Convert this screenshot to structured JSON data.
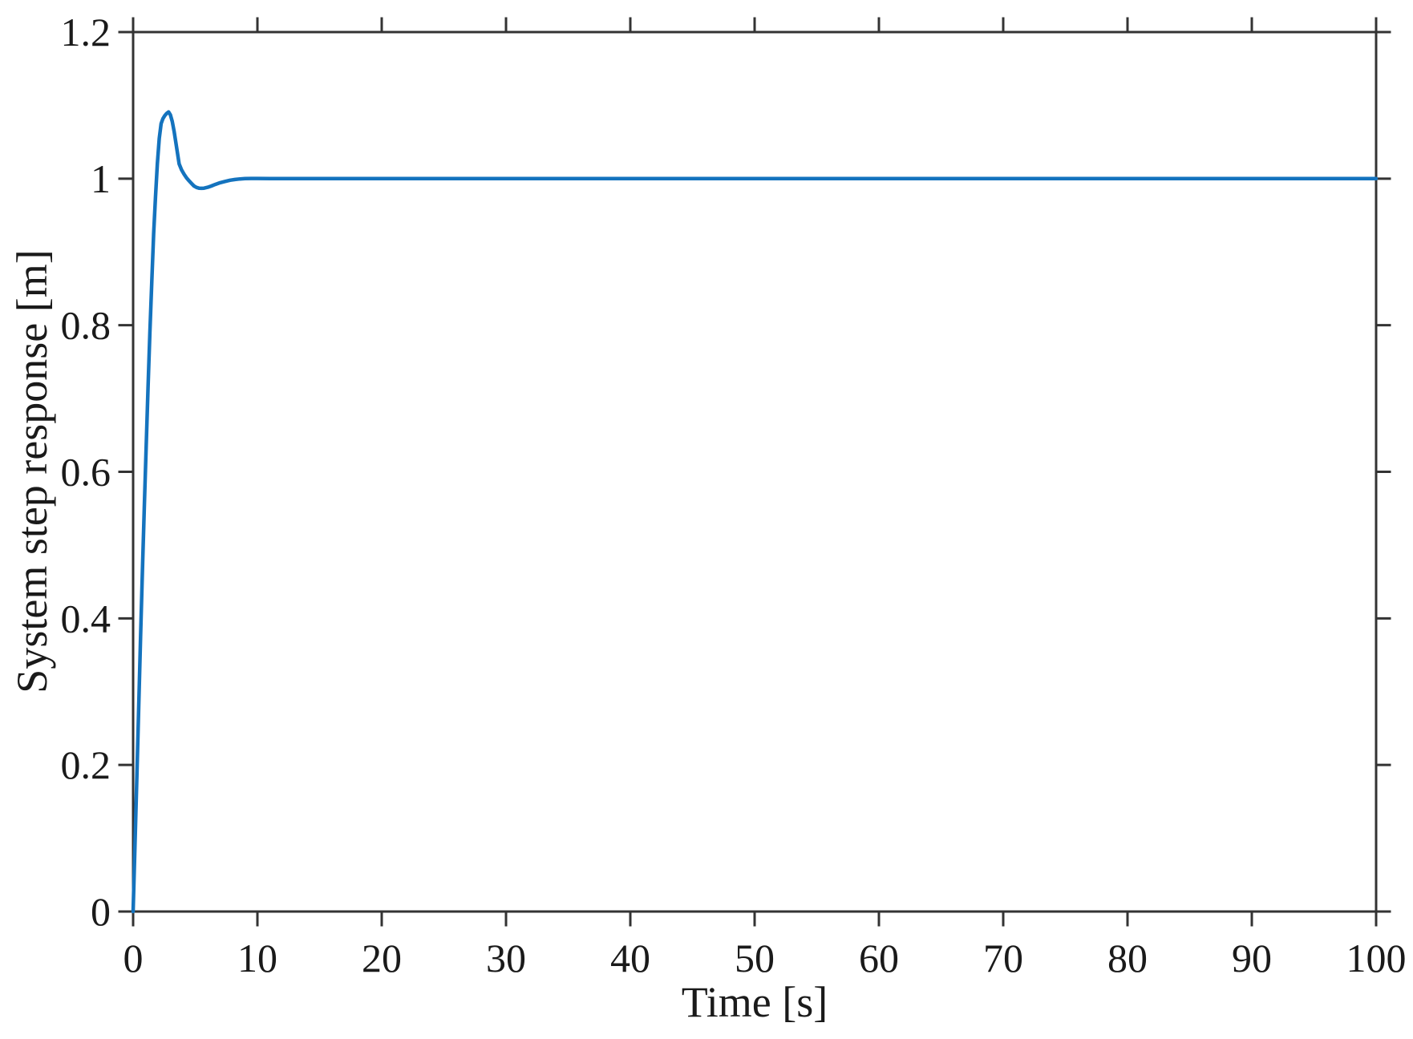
{
  "chart_data": {
    "type": "line",
    "title": "",
    "xlabel": "Time [s]",
    "ylabel": "System step response [m]",
    "xlim": [
      0,
      100
    ],
    "ylim": [
      0,
      1.2
    ],
    "xticks": [
      0,
      10,
      20,
      30,
      40,
      50,
      60,
      70,
      80,
      90,
      100
    ],
    "xtick_labels": [
      "0",
      "10",
      "20",
      "30",
      "40",
      "50",
      "60",
      "70",
      "80",
      "90",
      "100"
    ],
    "yticks": [
      0,
      0.2,
      0.4,
      0.6,
      0.8,
      1,
      1.2
    ],
    "ytick_labels": [
      "0",
      "0.2",
      "0.4",
      "0.6",
      "0.8",
      "1",
      "1.2"
    ],
    "grid": false,
    "box": true,
    "tick_direction": "out",
    "legend_position": "none",
    "axis_color": "#333333",
    "text_color": "#1a1a1a",
    "background_color": "#ffffff",
    "series": [
      {
        "name": "step response",
        "color": "#1473BE",
        "line_width": 4.5,
        "points": [
          [
            0,
            0
          ],
          [
            0.15,
            0.09
          ],
          [
            0.3,
            0.185
          ],
          [
            0.45,
            0.28
          ],
          [
            0.6,
            0.375
          ],
          [
            0.75,
            0.465
          ],
          [
            0.9,
            0.55
          ],
          [
            1.05,
            0.635
          ],
          [
            1.2,
            0.715
          ],
          [
            1.35,
            0.79
          ],
          [
            1.5,
            0.86
          ],
          [
            1.65,
            0.925
          ],
          [
            1.8,
            0.975
          ],
          [
            1.95,
            1.02
          ],
          [
            2.1,
            1.055
          ],
          [
            2.25,
            1.075
          ],
          [
            2.4,
            1.082
          ],
          [
            2.55,
            1.086
          ],
          [
            2.7,
            1.089
          ],
          [
            2.85,
            1.091
          ],
          [
            3.0,
            1.087
          ],
          [
            3.15,
            1.078
          ],
          [
            3.3,
            1.064
          ],
          [
            3.5,
            1.042
          ],
          [
            3.7,
            1.02
          ],
          [
            3.9,
            1.012
          ],
          [
            4.1,
            1.006
          ],
          [
            4.3,
            1.001
          ],
          [
            4.5,
            0.997
          ],
          [
            4.7,
            0.9935
          ],
          [
            4.9,
            0.99
          ],
          [
            5.1,
            0.988
          ],
          [
            5.3,
            0.987
          ],
          [
            5.5,
            0.9868
          ],
          [
            5.7,
            0.987
          ],
          [
            6.0,
            0.9882
          ],
          [
            6.3,
            0.99
          ],
          [
            6.6,
            0.992
          ],
          [
            7.0,
            0.9945
          ],
          [
            7.4,
            0.9962
          ],
          [
            7.8,
            0.9978
          ],
          [
            8.2,
            0.9988
          ],
          [
            8.6,
            0.9996
          ],
          [
            9.0,
            1.0
          ],
          [
            9.5,
            1.0003
          ],
          [
            10,
            1.0003
          ],
          [
            11,
            1.0001
          ],
          [
            12,
            1.0
          ],
          [
            14,
            1.0
          ],
          [
            16,
            1.0
          ],
          [
            18,
            1.0
          ],
          [
            20,
            1.0
          ],
          [
            25,
            1.0
          ],
          [
            30,
            1.0
          ],
          [
            35,
            1.0
          ],
          [
            40,
            1.0
          ],
          [
            45,
            1.0
          ],
          [
            50,
            1.0
          ],
          [
            55,
            1.0
          ],
          [
            60,
            1.0
          ],
          [
            65,
            1.0
          ],
          [
            70,
            1.0
          ],
          [
            75,
            1.0
          ],
          [
            80,
            1.0
          ],
          [
            85,
            1.0
          ],
          [
            90,
            1.0
          ],
          [
            95,
            1.0
          ],
          [
            100,
            1.0
          ]
        ]
      }
    ]
  }
}
